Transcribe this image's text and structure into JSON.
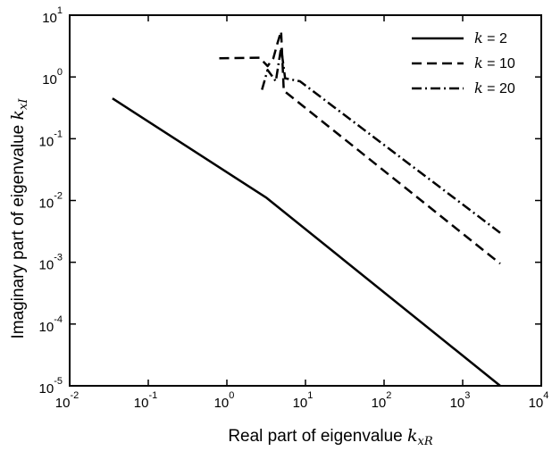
{
  "chart_data": {
    "type": "line",
    "xlabel": "Real part of eigenvalue",
    "xlabel_symbol": "k",
    "xlabel_subscript": "xR",
    "ylabel": "Imaginary part of eigenvalue",
    "ylabel_symbol": "k",
    "ylabel_subscript": "xI",
    "xscale": "log",
    "yscale": "log",
    "xlim": [
      0.01,
      10000
    ],
    "ylim": [
      1e-05,
      10
    ],
    "x_ticks": [
      {
        "base": "10",
        "exp": "-2",
        "value": 0.01
      },
      {
        "base": "10",
        "exp": "-1",
        "value": 0.1
      },
      {
        "base": "10",
        "exp": "0",
        "value": 1
      },
      {
        "base": "10",
        "exp": "1",
        "value": 10
      },
      {
        "base": "10",
        "exp": "2",
        "value": 100
      },
      {
        "base": "10",
        "exp": "3",
        "value": 1000
      },
      {
        "base": "10",
        "exp": "4",
        "value": 10000
      }
    ],
    "y_ticks": [
      {
        "base": "10",
        "exp": "-5",
        "value": 1e-05
      },
      {
        "base": "10",
        "exp": "-4",
        "value": 0.0001
      },
      {
        "base": "10",
        "exp": "-3",
        "value": 0.001
      },
      {
        "base": "10",
        "exp": "-2",
        "value": 0.01
      },
      {
        "base": "10",
        "exp": "-1",
        "value": 0.1
      },
      {
        "base": "10",
        "exp": "0",
        "value": 1
      },
      {
        "base": "10",
        "exp": "1",
        "value": 10
      }
    ],
    "grid": false,
    "legend_position": "top-right",
    "series": [
      {
        "name": "k = 2",
        "label_symbol": "k",
        "label_rest": " = 2",
        "style": "solid",
        "x": [
          0.035,
          3.2,
          3000
        ],
        "y": [
          0.45,
          0.011,
          1e-05
        ]
      },
      {
        "name": "k = 10",
        "label_symbol": "k",
        "label_rest": " = 10",
        "style": "dashed",
        "x": [
          0.8,
          2.6,
          3.3,
          3.9,
          4.4,
          4.9,
          5.3,
          3000
        ],
        "y": [
          2.0,
          2.05,
          1.5,
          2.0,
          3.5,
          5.5,
          0.6,
          0.00095
        ]
      },
      {
        "name": "k = 20",
        "label_symbol": "k",
        "label_rest": " = 20",
        "style": "dashdot",
        "x": [
          2.8,
          3.3,
          4.2,
          4.9,
          5.5,
          8.5,
          3000
        ],
        "y": [
          0.62,
          1.3,
          0.85,
          3.0,
          0.95,
          0.85,
          0.003
        ]
      }
    ]
  }
}
